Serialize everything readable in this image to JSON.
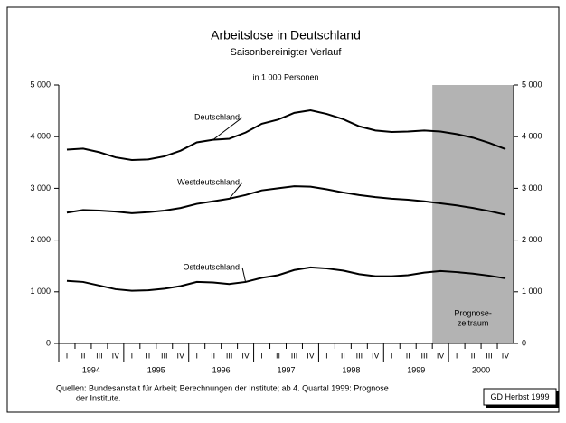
{
  "chart_data": {
    "type": "line",
    "title": "Arbeitslose in Deutschland",
    "subtitle": "Saisonbereinigter Verlauf",
    "unit_label": "in 1 000 Personen",
    "categories": [
      "I",
      "II",
      "III",
      "IV",
      "I",
      "II",
      "III",
      "IV",
      "I",
      "II",
      "III",
      "IV",
      "I",
      "II",
      "III",
      "IV",
      "I",
      "II",
      "III",
      "IV",
      "I",
      "II",
      "III",
      "IV",
      "I",
      "II",
      "III",
      "IV"
    ],
    "year_labels": [
      "1994",
      "1995",
      "1996",
      "1997",
      "1998",
      "1999",
      "2000"
    ],
    "series": [
      {
        "name": "Deutschland",
        "color": "#000000",
        "values": [
          3750,
          3770,
          3700,
          3600,
          3550,
          3560,
          3620,
          3730,
          3890,
          3940,
          3960,
          4080,
          4250,
          4330,
          4460,
          4510,
          4440,
          4340,
          4200,
          4120,
          4090,
          4100,
          4120,
          4100,
          4050,
          3980,
          3880,
          3760
        ]
      },
      {
        "name": "Westdeutschland",
        "color": "#000000",
        "values": [
          2530,
          2580,
          2570,
          2550,
          2520,
          2540,
          2570,
          2620,
          2700,
          2750,
          2800,
          2870,
          2960,
          3000,
          3040,
          3030,
          2980,
          2920,
          2870,
          2830,
          2800,
          2780,
          2750,
          2710,
          2670,
          2620,
          2560,
          2490
        ]
      },
      {
        "name": "Ostdeutschland",
        "color": "#000000",
        "values": [
          1210,
          1190,
          1120,
          1050,
          1020,
          1030,
          1060,
          1110,
          1190,
          1180,
          1150,
          1190,
          1270,
          1320,
          1420,
          1470,
          1450,
          1410,
          1340,
          1300,
          1300,
          1320,
          1370,
          1400,
          1380,
          1350,
          1310,
          1260
        ]
      }
    ],
    "ylim": [
      0,
      5000
    ],
    "yticks": [
      0,
      {
        "value": 1000,
        "label": "1 000"
      },
      {
        "value": 2000,
        "label": "2 000"
      },
      {
        "value": 3000,
        "label": "3 000"
      },
      {
        "value": 4000,
        "label": "4 000"
      },
      {
        "value": 5000,
        "label": "5 000"
      }
    ],
    "y2lim": [
      0,
      5000
    ],
    "y2ticks": [
      0,
      {
        "value": 1000,
        "label": "1 000"
      },
      {
        "value": 2000,
        "label": "2 000"
      },
      {
        "value": 3000,
        "label": "3 000"
      },
      {
        "value": 4000,
        "label": "4 000"
      },
      {
        "value": 5000,
        "label": "5 000"
      }
    ],
    "forecast_start_index": 23,
    "forecast_color": "#b3b3b3",
    "forecast_label": [
      "Prognose-",
      "zeitraum"
    ],
    "source": [
      "Quellen: Bundesanstalt für Arbeit; Berechnungen der Institute; ab 4. Quartal 1999: Prognose",
      "der Institute."
    ],
    "credit": "GD Herbst 1999"
  }
}
